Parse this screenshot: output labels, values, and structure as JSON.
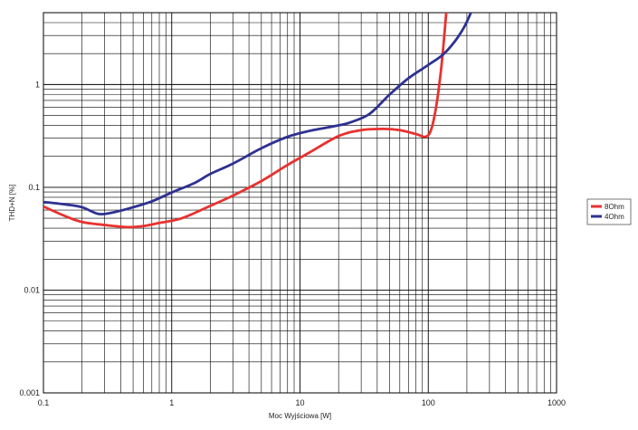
{
  "chart_data": {
    "type": "line",
    "title": "",
    "xlabel": "Moc Wyjściowa [W]",
    "ylabel": "THD+N [%]",
    "xscale": "log",
    "yscale": "log",
    "xlim": [
      0.1,
      1000
    ],
    "ylim": [
      0.001,
      5
    ],
    "x_tick_labels": [
      "0.1",
      "1",
      "10",
      "100",
      "1000"
    ],
    "y_tick_labels": [
      "0.001",
      "0.01",
      "0.1",
      "1"
    ],
    "grid": true,
    "legend_position": "right",
    "series": [
      {
        "name": "8Ohm",
        "color": "#e8322f",
        "points": [
          [
            0.1,
            0.065
          ],
          [
            0.15,
            0.052
          ],
          [
            0.2,
            0.046
          ],
          [
            0.3,
            0.043
          ],
          [
            0.45,
            0.041
          ],
          [
            0.6,
            0.042
          ],
          [
            0.8,
            0.045
          ],
          [
            1.2,
            0.05
          ],
          [
            2,
            0.066
          ],
          [
            3,
            0.083
          ],
          [
            5,
            0.115
          ],
          [
            8,
            0.165
          ],
          [
            12,
            0.22
          ],
          [
            20,
            0.315
          ],
          [
            30,
            0.36
          ],
          [
            45,
            0.37
          ],
          [
            60,
            0.36
          ],
          [
            80,
            0.33
          ],
          [
            95,
            0.31
          ],
          [
            105,
            0.36
          ],
          [
            115,
            0.6
          ],
          [
            125,
            1.3
          ],
          [
            132,
            2.6
          ],
          [
            138,
            5
          ]
        ]
      },
      {
        "name": "4Ohm",
        "color": "#2e3192",
        "points": [
          [
            0.1,
            0.072
          ],
          [
            0.15,
            0.068
          ],
          [
            0.2,
            0.064
          ],
          [
            0.27,
            0.055
          ],
          [
            0.35,
            0.057
          ],
          [
            0.5,
            0.064
          ],
          [
            0.7,
            0.073
          ],
          [
            1,
            0.089
          ],
          [
            1.5,
            0.11
          ],
          [
            2,
            0.135
          ],
          [
            3,
            0.17
          ],
          [
            5,
            0.24
          ],
          [
            8,
            0.31
          ],
          [
            12,
            0.355
          ],
          [
            20,
            0.4
          ],
          [
            25,
            0.43
          ],
          [
            35,
            0.52
          ],
          [
            50,
            0.8
          ],
          [
            70,
            1.15
          ],
          [
            100,
            1.55
          ],
          [
            130,
            1.95
          ],
          [
            160,
            2.6
          ],
          [
            190,
            3.6
          ],
          [
            215,
            5
          ]
        ]
      }
    ]
  }
}
